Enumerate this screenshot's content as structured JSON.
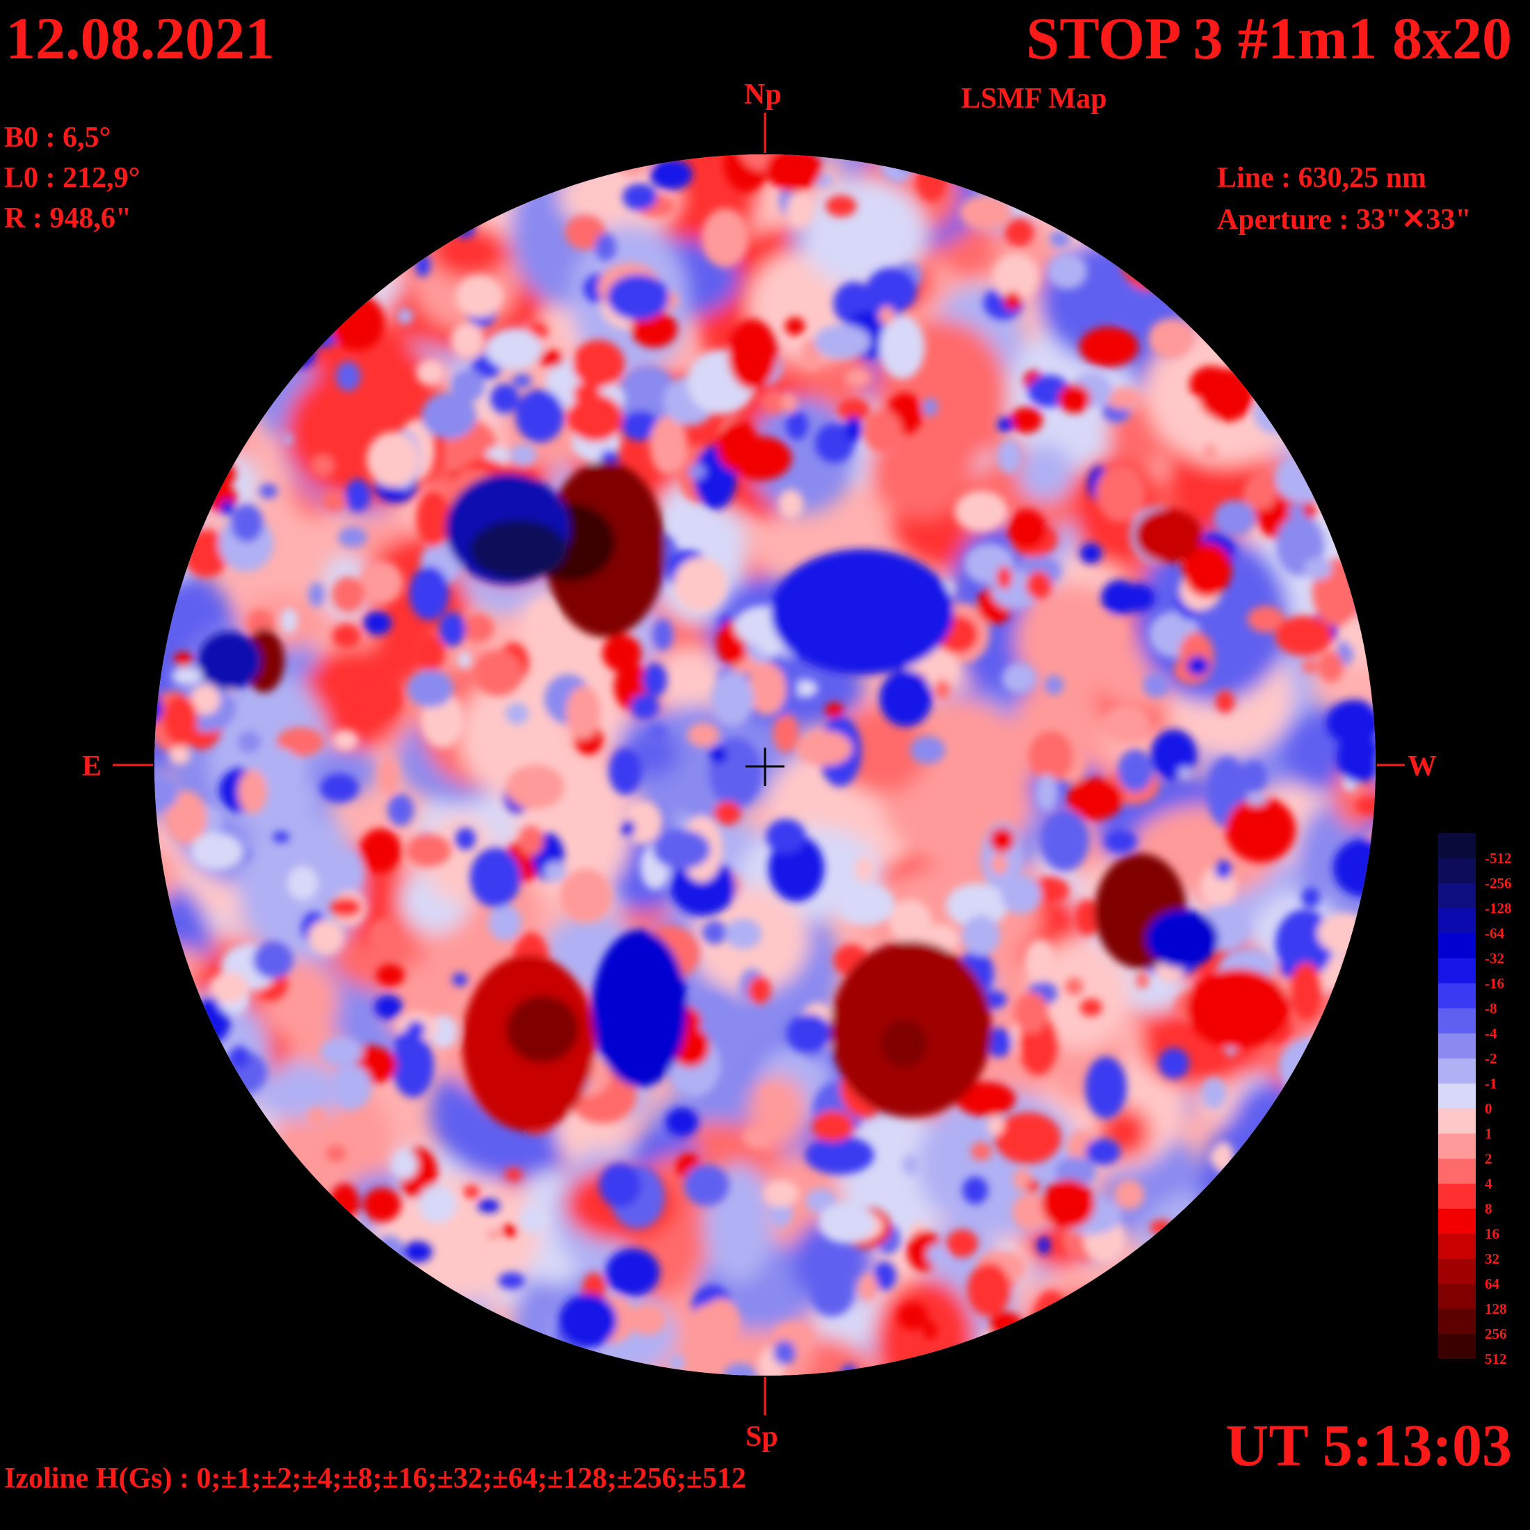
{
  "header": {
    "date": "12.08.2021",
    "title": "STOP 3 #1m1 8x20",
    "subtitle": "LSMF  Map"
  },
  "params_left": {
    "b0": "B0 : 6,5°",
    "l0": "L0 : 212,9°",
    "r": "R  : 948,6\""
  },
  "params_right": {
    "line": "Line :  630,25 nm",
    "aperture": "Aperture : 33\"✕33\""
  },
  "compass": {
    "north": "Np",
    "south": "Sp",
    "east": "E",
    "west": "W"
  },
  "footer": {
    "time": "UT 5:13:03",
    "izoline": "Izoline H(Gs) : 0;±1;±2;±4;±8;±16;±32;±64;±128;±256;±512"
  },
  "legend": {
    "levels": [
      {
        "label": "-512",
        "color": "#0a0a3a"
      },
      {
        "label": "-256",
        "color": "#0c0c5a"
      },
      {
        "label": "-128",
        "color": "#0e0e80"
      },
      {
        "label": "-64",
        "color": "#0a0ab0"
      },
      {
        "label": "-32",
        "color": "#0000d0"
      },
      {
        "label": "-16",
        "color": "#1515e8"
      },
      {
        "label": "-8",
        "color": "#3a3af2"
      },
      {
        "label": "-4",
        "color": "#6060f0"
      },
      {
        "label": "-2",
        "color": "#8a8af0"
      },
      {
        "label": "-1",
        "color": "#b0b0f4"
      },
      {
        "label": "0",
        "color": "#d8d8f8"
      },
      {
        "label": "1",
        "color": "#ffc8c8"
      },
      {
        "label": "2",
        "color": "#ff9a9a"
      },
      {
        "label": "4",
        "color": "#ff6a6a"
      },
      {
        "label": "8",
        "color": "#ff3030"
      },
      {
        "label": "16",
        "color": "#f20000"
      },
      {
        "label": "32",
        "color": "#c80000"
      },
      {
        "label": "64",
        "color": "#a00000"
      },
      {
        "label": "128",
        "color": "#800000"
      },
      {
        "label": "256",
        "color": "#5c0000"
      },
      {
        "label": "512",
        "color": "#3a0000"
      }
    ]
  }
}
